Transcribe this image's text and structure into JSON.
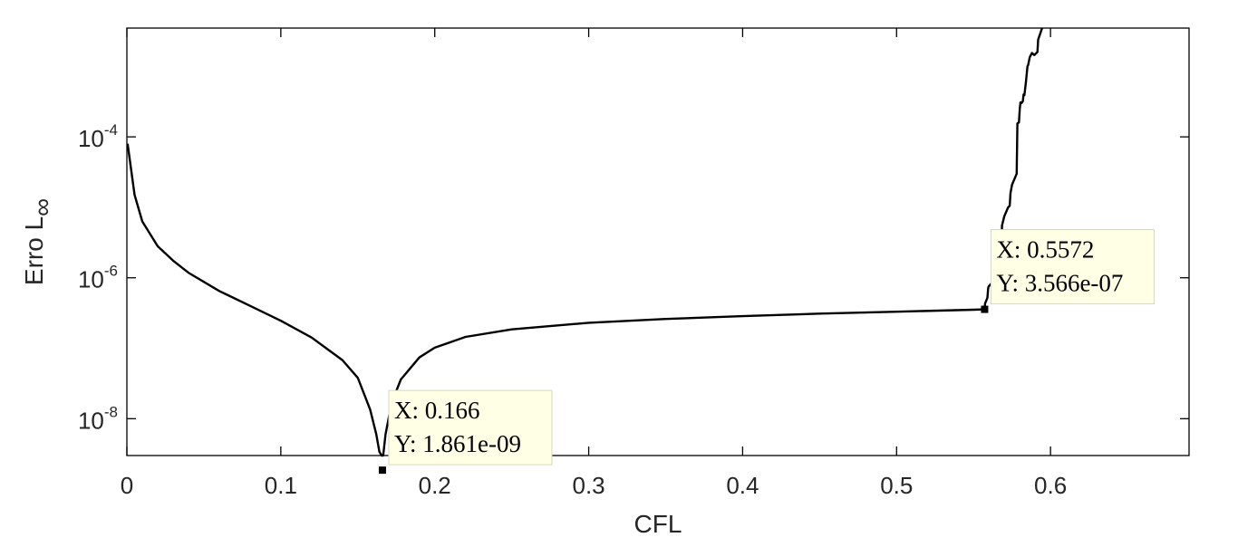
{
  "chart_data": {
    "type": "line",
    "title": "",
    "xlabel": "CFL",
    "ylabel": "Erro L",
    "ylabel_subscript": "∞",
    "y_scale": "log",
    "xlim": [
      0,
      0.69
    ],
    "ylim": [
      3e-09,
      0.0035
    ],
    "grid": false,
    "x_ticks": [
      {
        "value": 0,
        "label": "0"
      },
      {
        "value": 0.1,
        "label": "0.1"
      },
      {
        "value": 0.2,
        "label": "0.2"
      },
      {
        "value": 0.3,
        "label": "0.3"
      },
      {
        "value": 0.4,
        "label": "0.4"
      },
      {
        "value": 0.5,
        "label": "0.5"
      },
      {
        "value": 0.6,
        "label": "0.6"
      }
    ],
    "y_ticks": [
      {
        "value": 1e-08,
        "base": "10",
        "exponent": "-8"
      },
      {
        "value": 1e-06,
        "base": "10",
        "exponent": "-6"
      },
      {
        "value": 0.0001,
        "base": "10",
        "exponent": "-4"
      }
    ],
    "series": [
      {
        "color": "#000000",
        "x": [
          0.0005,
          0.005,
          0.01,
          0.02,
          0.03,
          0.04,
          0.06,
          0.08,
          0.1,
          0.12,
          0.14,
          0.15,
          0.158,
          0.162,
          0.164,
          0.1655,
          0.166,
          0.1665,
          0.168,
          0.172,
          0.178,
          0.19,
          0.2,
          0.22,
          0.25,
          0.3,
          0.35,
          0.4,
          0.45,
          0.5,
          0.55,
          0.5572,
          0.5575,
          0.559,
          0.5595,
          0.5598,
          0.562,
          0.565,
          0.568,
          0.5685,
          0.57,
          0.5725,
          0.5735,
          0.574,
          0.575,
          0.5765,
          0.578,
          0.5785,
          0.5795,
          0.58,
          0.5805,
          0.581,
          0.582,
          0.5825,
          0.583,
          0.584,
          0.585,
          0.5855,
          0.5865,
          0.588,
          0.5895,
          0.5915,
          0.592,
          0.5935,
          0.5945
        ],
        "y": [
          8e-05,
          1.5e-05,
          6.3e-06,
          2.8e-06,
          1.75e-06,
          1.18e-06,
          6.5e-07,
          4e-07,
          2.45e-07,
          1.42e-07,
          6.8e-08,
          3.8e-08,
          1.35e-08,
          6e-09,
          3.4e-09,
          2.2e-09,
          1.861e-09,
          2.5e-09,
          6e-09,
          1.7e-08,
          3.6e-08,
          7.4e-08,
          1.02e-07,
          1.45e-07,
          1.85e-07,
          2.3e-07,
          2.6e-07,
          2.85e-07,
          3.1e-07,
          3.3e-07,
          3.52e-07,
          3.566e-07,
          4.3e-07,
          5.2e-07,
          7e-07,
          7.5e-07,
          8.5e-07,
          1.05e-06,
          1.3e-06,
          5.5e-06,
          7.5e-06,
          1e-05,
          1.05e-05,
          1.6e-05,
          2.1e-05,
          2.5e-05,
          3e-05,
          0.000155,
          0.00016,
          0.00025,
          0.00031,
          0.0003,
          0.00032,
          0.0004,
          0.00039,
          0.0006,
          0.001,
          0.00105,
          0.00135,
          0.00155,
          0.00145,
          0.0016,
          0.0024,
          0.003,
          0.0036
        ]
      }
    ],
    "datatips": [
      {
        "x": 0.166,
        "y": 1.861e-09,
        "x_text": "X: 0.166",
        "y_text": "Y: 1.861e-09"
      },
      {
        "x": 0.5572,
        "y": 3.566e-07,
        "x_text": "X: 0.5572",
        "y_text": "Y: 3.566e-07"
      }
    ]
  }
}
